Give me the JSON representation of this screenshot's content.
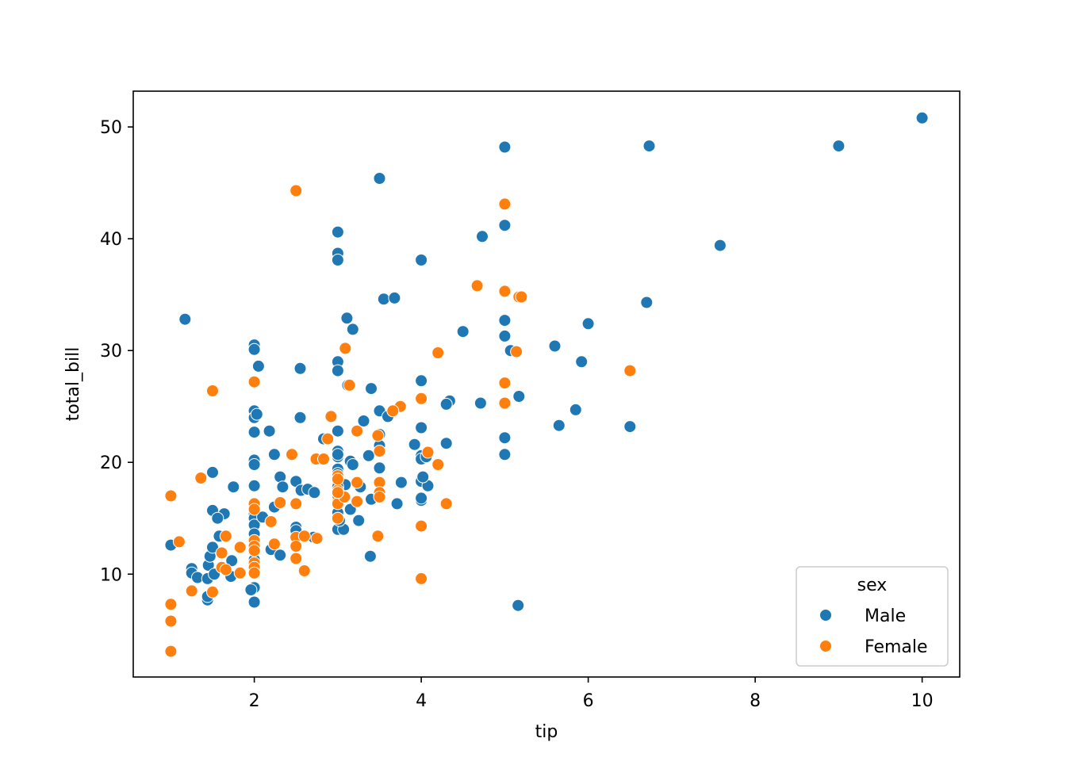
{
  "chart_data": {
    "type": "scatter",
    "title": "",
    "xlabel": "tip",
    "ylabel": "total_bill",
    "xlim": [
      0.55,
      10.45
    ],
    "ylim": [
      0.8,
      53.2
    ],
    "xticks": [
      2,
      4,
      6,
      8,
      10
    ],
    "yticks": [
      10,
      20,
      30,
      40,
      50
    ],
    "grid": false,
    "legend": {
      "title": "sex",
      "placement": "lower right",
      "entries": [
        "Male",
        "Female"
      ]
    },
    "colors": {
      "Male": "#1f77b4",
      "Female": "#ff7f0e"
    },
    "series": [
      {
        "name": "Male",
        "points": [
          [
            10.0,
            50.8
          ],
          [
            9.0,
            48.3
          ],
          [
            6.73,
            48.3
          ],
          [
            5.0,
            48.2
          ],
          [
            3.5,
            45.4
          ],
          [
            7.58,
            39.4
          ],
          [
            3.0,
            40.6
          ],
          [
            3.0,
            38.7
          ],
          [
            3.0,
            38.1
          ],
          [
            4.0,
            38.1
          ],
          [
            4.73,
            40.2
          ],
          [
            5.0,
            41.2
          ],
          [
            3.55,
            34.6
          ],
          [
            3.68,
            34.7
          ],
          [
            6.7,
            34.3
          ],
          [
            1.17,
            32.8
          ],
          [
            3.11,
            32.9
          ],
          [
            3.18,
            31.9
          ],
          [
            4.5,
            31.7
          ],
          [
            5.0,
            32.7
          ],
          [
            5.0,
            31.3
          ],
          [
            6.0,
            32.4
          ],
          [
            5.07,
            30.0
          ],
          [
            5.6,
            30.4
          ],
          [
            5.92,
            29.0
          ],
          [
            2.0,
            30.5
          ],
          [
            2.0,
            30.1
          ],
          [
            2.05,
            28.6
          ],
          [
            2.55,
            28.4
          ],
          [
            3.0,
            29.0
          ],
          [
            3.0,
            28.2
          ],
          [
            3.12,
            26.9
          ],
          [
            3.4,
            26.6
          ],
          [
            4.0,
            27.3
          ],
          [
            4.34,
            25.5
          ],
          [
            4.3,
            25.2
          ],
          [
            4.71,
            25.3
          ],
          [
            5.17,
            25.9
          ],
          [
            5.85,
            24.7
          ],
          [
            5.65,
            23.3
          ],
          [
            6.5,
            23.2
          ],
          [
            5.0,
            22.2
          ],
          [
            5.0,
            20.7
          ],
          [
            2.0,
            24.6
          ],
          [
            2.0,
            24.0
          ],
          [
            2.03,
            24.3
          ],
          [
            2.55,
            24.0
          ],
          [
            2.18,
            22.8
          ],
          [
            2.0,
            22.7
          ],
          [
            3.0,
            22.8
          ],
          [
            3.5,
            24.6
          ],
          [
            3.6,
            24.1
          ],
          [
            3.31,
            23.7
          ],
          [
            4.0,
            23.1
          ],
          [
            4.3,
            21.7
          ],
          [
            3.92,
            21.6
          ],
          [
            3.5,
            22.5
          ],
          [
            3.5,
            21.5
          ],
          [
            3.0,
            21.0
          ],
          [
            3.0,
            20.5
          ],
          [
            3.0,
            20.7
          ],
          [
            3.15,
            20.1
          ],
          [
            3.18,
            19.8
          ],
          [
            3.37,
            20.6
          ],
          [
            4.0,
            20.6
          ],
          [
            4.0,
            20.3
          ],
          [
            4.06,
            20.5
          ],
          [
            2.24,
            20.7
          ],
          [
            2.0,
            20.2
          ],
          [
            2.0,
            19.8
          ],
          [
            1.5,
            19.1
          ],
          [
            1.75,
            17.8
          ],
          [
            2.0,
            17.9
          ],
          [
            2.31,
            18.7
          ],
          [
            2.34,
            17.8
          ],
          [
            2.5,
            18.3
          ],
          [
            2.56,
            17.5
          ],
          [
            2.64,
            17.6
          ],
          [
            2.72,
            17.3
          ],
          [
            3.0,
            18.0
          ],
          [
            3.0,
            19.4
          ],
          [
            3.09,
            18.0
          ],
          [
            3.27,
            17.8
          ],
          [
            3.5,
            19.5
          ],
          [
            3.76,
            18.2
          ],
          [
            4.0,
            18.3
          ],
          [
            4.08,
            17.9
          ],
          [
            3.0,
            16.5
          ],
          [
            3.0,
            15.5
          ],
          [
            3.15,
            15.8
          ],
          [
            3.4,
            16.7
          ],
          [
            3.71,
            16.3
          ],
          [
            4.0,
            16.6
          ],
          [
            4.0,
            16.8
          ],
          [
            3.5,
            17.1
          ],
          [
            3.25,
            14.8
          ],
          [
            3.0,
            14.0
          ],
          [
            3.07,
            14.0
          ],
          [
            3.0,
            15.0
          ],
          [
            2.0,
            16.3
          ],
          [
            2.0,
            15.4
          ],
          [
            2.0,
            15.0
          ],
          [
            2.0,
            14.4
          ],
          [
            2.0,
            13.6
          ],
          [
            2.0,
            13.0
          ],
          [
            2.1,
            15.1
          ],
          [
            2.2,
            14.7
          ],
          [
            2.24,
            16.0
          ],
          [
            1.5,
            15.7
          ],
          [
            1.64,
            15.4
          ],
          [
            1.56,
            15.0
          ],
          [
            1.58,
            13.4
          ],
          [
            2.5,
            14.2
          ],
          [
            2.5,
            13.9
          ],
          [
            2.5,
            12.6
          ],
          [
            2.71,
            13.3
          ],
          [
            3.39,
            11.6
          ],
          [
            2.0,
            12.2
          ],
          [
            2.0,
            11.3
          ],
          [
            2.0,
            10.1
          ],
          [
            2.2,
            12.2
          ],
          [
            2.31,
            11.7
          ],
          [
            2.0,
            8.8
          ],
          [
            2.0,
            7.5
          ],
          [
            1.96,
            8.6
          ],
          [
            1.0,
            12.6
          ],
          [
            1.25,
            10.5
          ],
          [
            1.25,
            10.1
          ],
          [
            1.32,
            9.7
          ],
          [
            1.44,
            9.6
          ],
          [
            1.45,
            10.8
          ],
          [
            1.47,
            11.6
          ],
          [
            1.5,
            12.4
          ],
          [
            1.52,
            10.0
          ],
          [
            1.72,
            9.8
          ],
          [
            1.73,
            11.2
          ],
          [
            1.44,
            7.7
          ],
          [
            1.44,
            8.0
          ],
          [
            5.16,
            7.2
          ],
          [
            2.83,
            22.1
          ],
          [
            3.0,
            17.8
          ],
          [
            3.0,
            19.0
          ],
          [
            3.02,
            14.8
          ],
          [
            3.5,
            21.0
          ],
          [
            4.02,
            18.7
          ]
        ]
      },
      {
        "name": "Female",
        "points": [
          [
            2.5,
            44.3
          ],
          [
            5.0,
            43.1
          ],
          [
            4.67,
            35.8
          ],
          [
            5.0,
            35.3
          ],
          [
            5.17,
            34.8
          ],
          [
            5.2,
            34.8
          ],
          [
            5.14,
            29.9
          ],
          [
            4.2,
            29.8
          ],
          [
            3.09,
            30.2
          ],
          [
            6.5,
            28.2
          ],
          [
            2.0,
            27.2
          ],
          [
            5.0,
            27.1
          ],
          [
            3.14,
            26.9
          ],
          [
            1.5,
            26.4
          ],
          [
            4.0,
            25.7
          ],
          [
            5.0,
            25.3
          ],
          [
            3.75,
            25.0
          ],
          [
            3.66,
            24.6
          ],
          [
            2.92,
            24.1
          ],
          [
            3.23,
            22.8
          ],
          [
            3.48,
            22.4
          ],
          [
            2.88,
            22.1
          ],
          [
            3.5,
            21.0
          ],
          [
            4.08,
            20.9
          ],
          [
            4.2,
            19.8
          ],
          [
            2.45,
            20.7
          ],
          [
            2.74,
            20.3
          ],
          [
            2.83,
            20.3
          ],
          [
            3.0,
            18.8
          ],
          [
            3.23,
            18.2
          ],
          [
            3.5,
            18.2
          ],
          [
            1.36,
            18.6
          ],
          [
            3.0,
            17.5
          ],
          [
            3.0,
            17.0
          ],
          [
            3.5,
            17.3
          ],
          [
            3.5,
            16.9
          ],
          [
            3.0,
            16.3
          ],
          [
            3.08,
            16.9
          ],
          [
            3.23,
            16.5
          ],
          [
            4.3,
            16.3
          ],
          [
            2.0,
            16.3
          ],
          [
            2.0,
            15.8
          ],
          [
            2.31,
            16.4
          ],
          [
            2.5,
            16.3
          ],
          [
            3.0,
            15.0
          ],
          [
            2.2,
            14.7
          ],
          [
            4.0,
            14.3
          ],
          [
            1.66,
            13.4
          ],
          [
            2.0,
            13.0
          ],
          [
            2.0,
            12.5
          ],
          [
            2.0,
            12.1
          ],
          [
            2.24,
            12.7
          ],
          [
            2.5,
            13.3
          ],
          [
            2.5,
            12.5
          ],
          [
            2.6,
            13.4
          ],
          [
            2.75,
            13.2
          ],
          [
            3.48,
            13.4
          ],
          [
            1.1,
            12.9
          ],
          [
            1.61,
            11.9
          ],
          [
            1.83,
            12.4
          ],
          [
            2.0,
            11.0
          ],
          [
            2.0,
            10.6
          ],
          [
            2.0,
            10.1
          ],
          [
            2.5,
            11.4
          ],
          [
            2.6,
            10.3
          ],
          [
            1.61,
            10.6
          ],
          [
            1.66,
            10.4
          ],
          [
            1.83,
            10.1
          ],
          [
            1.25,
            8.5
          ],
          [
            1.5,
            8.4
          ],
          [
            1.0,
            17.0
          ],
          [
            1.0,
            7.3
          ],
          [
            1.0,
            5.8
          ],
          [
            1.0,
            3.1
          ],
          [
            4.0,
            9.6
          ],
          [
            3.0,
            17.3
          ],
          [
            3.0,
            18.5
          ]
        ]
      }
    ]
  }
}
